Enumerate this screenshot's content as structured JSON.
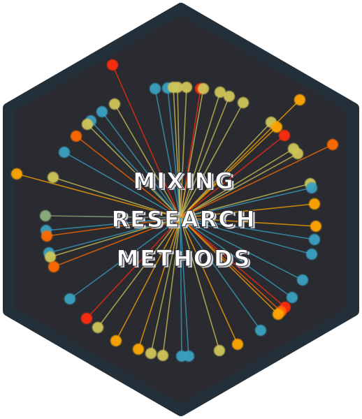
{
  "sticker": {
    "title_lines": [
      "MIXING",
      "RESEARCH",
      "METHODS"
    ],
    "colors": {
      "background": "#2a2b30",
      "border": "#243039",
      "title": "#ffffff",
      "red": "#ff2a12",
      "orange": "#ff6a00",
      "amber": "#ffa500",
      "yellow": "#f2c21f",
      "khaki": "#cfc55a",
      "teal": "#3aa0c2",
      "sage": "#8fb07c"
    },
    "icon": "radial-network-burst"
  }
}
